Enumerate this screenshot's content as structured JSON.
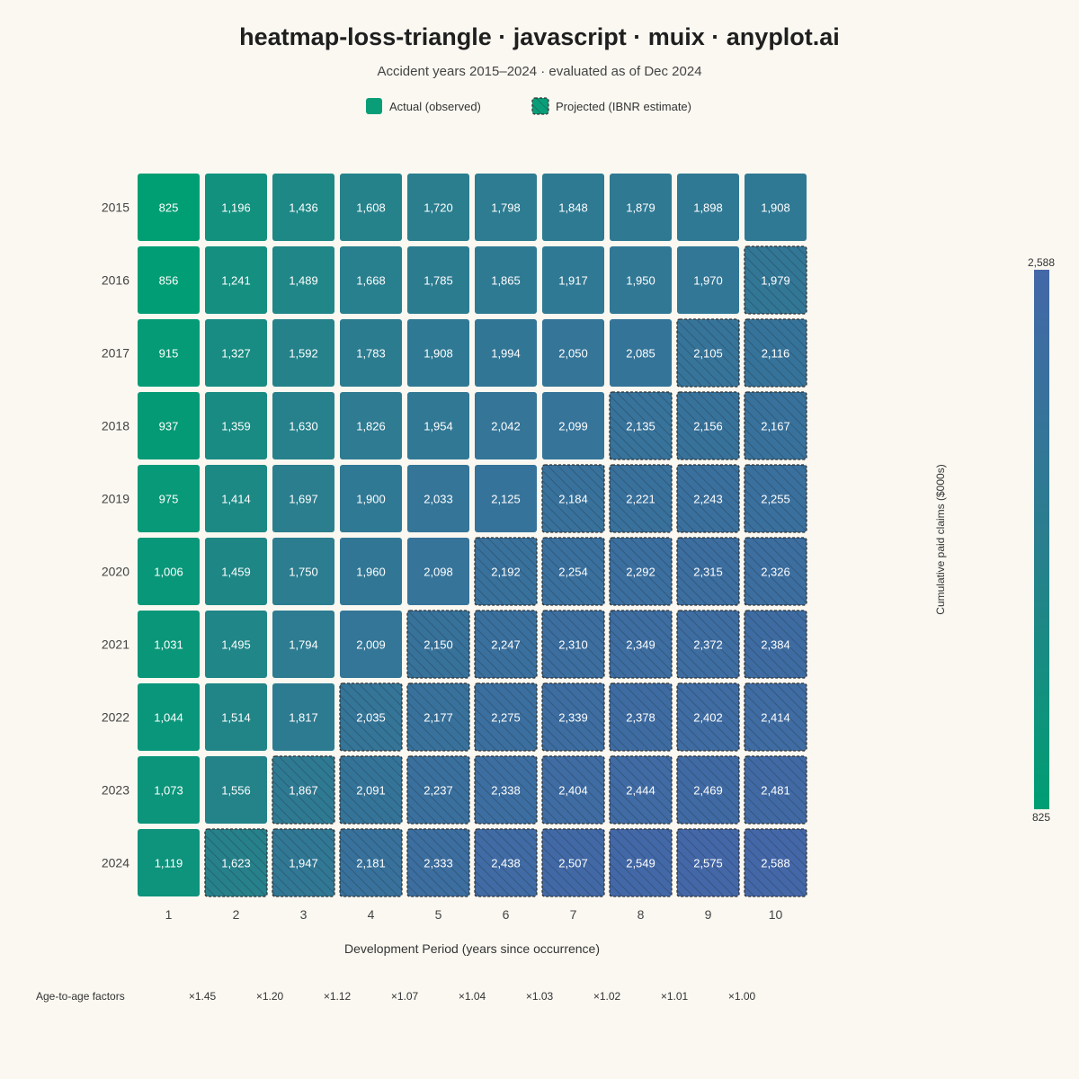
{
  "title": "heatmap-loss-triangle · javascript · muix · anyplot.ai",
  "subtitle": "Accident years 2015–2024 · evaluated as of Dec 2024",
  "legend": {
    "actual_label": "Actual (observed)",
    "projected_label": "Projected (IBNR estimate)"
  },
  "colors": {
    "background": "#FAF8F1",
    "scale_low": "#009E73",
    "scale_mid": "#2A7E8E",
    "scale_high": "#4467A8",
    "projected_border": "#333333"
  },
  "colorbar": {
    "label": "Cumulative paid claims ($000s)",
    "max_label": "2,588",
    "min_label": "825"
  },
  "factors_label": "Age-to-age factors",
  "chart_data": {
    "type": "heatmap",
    "title": "heatmap-loss-triangle · javascript · muix · anyplot.ai",
    "subtitle": "Accident years 2015–2024 · evaluated as of Dec 2024",
    "xlabel": "Development Period (years since occurrence)",
    "ylabel": "",
    "x_categories": [
      "1",
      "2",
      "3",
      "4",
      "5",
      "6",
      "7",
      "8",
      "9",
      "10"
    ],
    "y_categories": [
      "2015",
      "2016",
      "2017",
      "2018",
      "2019",
      "2020",
      "2021",
      "2022",
      "2023",
      "2024"
    ],
    "value_range": [
      825,
      2588
    ],
    "values": [
      [
        825,
        1196,
        1436,
        1608,
        1720,
        1798,
        1848,
        1879,
        1898,
        1908
      ],
      [
        856,
        1241,
        1489,
        1668,
        1785,
        1865,
        1917,
        1950,
        1970,
        1979
      ],
      [
        915,
        1327,
        1592,
        1783,
        1908,
        1994,
        2050,
        2085,
        2105,
        2116
      ],
      [
        937,
        1359,
        1630,
        1826,
        1954,
        2042,
        2099,
        2135,
        2156,
        2167
      ],
      [
        975,
        1414,
        1697,
        1900,
        2033,
        2125,
        2184,
        2221,
        2243,
        2255
      ],
      [
        1006,
        1459,
        1750,
        1960,
        2098,
        2192,
        2254,
        2292,
        2315,
        2326
      ],
      [
        1031,
        1495,
        1794,
        2009,
        2150,
        2247,
        2310,
        2349,
        2372,
        2384
      ],
      [
        1044,
        1514,
        1817,
        2035,
        2177,
        2275,
        2339,
        2378,
        2402,
        2414
      ],
      [
        1073,
        1556,
        1867,
        2091,
        2237,
        2338,
        2404,
        2444,
        2469,
        2481
      ],
      [
        1119,
        1623,
        1947,
        2181,
        2333,
        2438,
        2507,
        2549,
        2575,
        2588
      ]
    ],
    "projected_rule": "cells with development period greater than (2024 - accident year + 1) are projected",
    "age_to_age_factors": [
      "×1.45",
      "×1.20",
      "×1.12",
      "×1.07",
      "×1.04",
      "×1.03",
      "×1.02",
      "×1.01",
      "×1.00"
    ],
    "legend_placement": "top-center",
    "grid": false
  }
}
